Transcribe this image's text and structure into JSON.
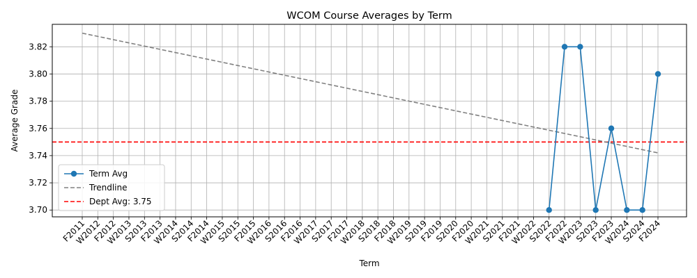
{
  "chart_data": {
    "type": "line",
    "title": "WCOM Course Averages by Term",
    "xlabel": "Term",
    "ylabel": "Average Grade",
    "categories": [
      "F2011",
      "W2012",
      "F2012",
      "W2013",
      "S2013",
      "F2013",
      "W2014",
      "S2014",
      "F2014",
      "W2015",
      "S2015",
      "F2015",
      "W2016",
      "S2016",
      "F2016",
      "W2017",
      "S2017",
      "F2017",
      "W2018",
      "S2018",
      "F2018",
      "W2019",
      "S2019",
      "F2019",
      "S2020",
      "F2020",
      "W2021",
      "S2021",
      "F2021",
      "W2022",
      "S2022",
      "F2022",
      "W2023",
      "S2023",
      "F2023",
      "W2024",
      "S2024",
      "F2024"
    ],
    "ylim": [
      3.695,
      3.8365
    ],
    "yticks": [
      3.7,
      3.72,
      3.74,
      3.76,
      3.78,
      3.8,
      3.82
    ],
    "grid": true,
    "legend_position": "lower-left",
    "series": [
      {
        "name": "Term Avg",
        "color": "#1f77b4",
        "marker": "circle",
        "points": [
          {
            "x": "S2022",
            "y": 3.7
          },
          {
            "x": "F2022",
            "y": 3.82
          },
          {
            "x": "W2023",
            "y": 3.82
          },
          {
            "x": "S2023",
            "y": 3.7
          },
          {
            "x": "F2023",
            "y": 3.76
          },
          {
            "x": "W2024",
            "y": 3.7
          },
          {
            "x": "S2024",
            "y": 3.7
          },
          {
            "x": "F2024",
            "y": 3.8
          }
        ]
      },
      {
        "name": "Trendline",
        "color": "#808080",
        "style": "dashed",
        "start": {
          "x": "F2011",
          "y": 3.83
        },
        "end": {
          "x": "F2024",
          "y": 3.742
        }
      },
      {
        "name": "Dept Avg: 3.75",
        "color": "#ff0000",
        "style": "dashed",
        "y": 3.75
      }
    ]
  }
}
